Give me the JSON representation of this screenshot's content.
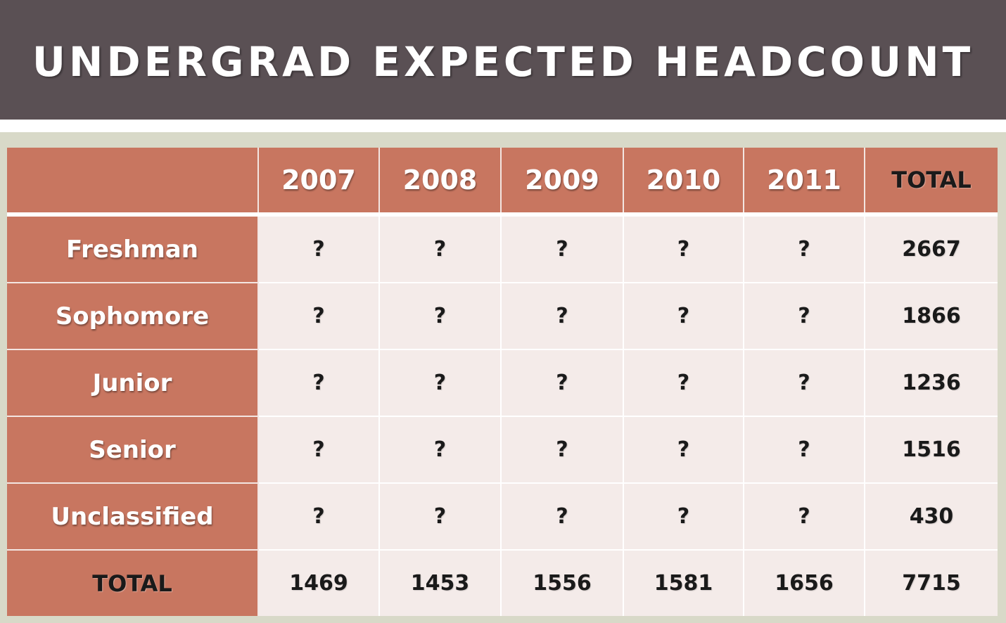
{
  "title": "UNDERGRAD EXPECTED HEADCOUNT",
  "table": {
    "columns": [
      "",
      "2007",
      "2008",
      "2009",
      "2010",
      "2011",
      "TOTAL"
    ],
    "rows": [
      {
        "label": "Freshman",
        "values": [
          "?",
          "?",
          "?",
          "?",
          "?",
          "2667"
        ]
      },
      {
        "label": "Sophomore",
        "values": [
          "?",
          "?",
          "?",
          "?",
          "?",
          "1866"
        ]
      },
      {
        "label": "Junior",
        "values": [
          "?",
          "?",
          "?",
          "?",
          "?",
          "1236"
        ]
      },
      {
        "label": "Senior",
        "values": [
          "?",
          "?",
          "?",
          "?",
          "?",
          "1516"
        ]
      },
      {
        "label": "Unclassified",
        "values": [
          "?",
          "?",
          "?",
          "?",
          "?",
          "430"
        ]
      },
      {
        "label": "TOTAL",
        "values": [
          "1469",
          "1453",
          "1556",
          "1581",
          "1656",
          "7715"
        ]
      }
    ]
  },
  "colors": {
    "title_bar": "#5a5054",
    "header_fill": "#c87660",
    "cell_fill": "#f4ebe9",
    "background": "#d8d9c8"
  }
}
